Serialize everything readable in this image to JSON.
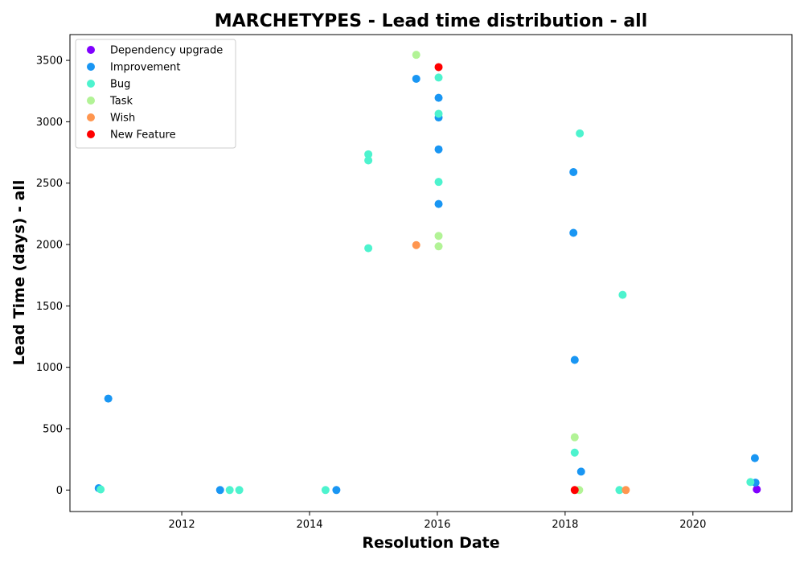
{
  "chart_data": {
    "type": "scatter",
    "title": "MARCHETYPES - Lead time distribution - all",
    "xlabel": "Resolution Date",
    "ylabel": "Lead Time (days) - all",
    "xlim": [
      2010.25,
      2021.55
    ],
    "ylim": [
      -175,
      3710
    ],
    "xticks": [
      2012,
      2014,
      2016,
      2018,
      2020
    ],
    "xtick_labels": [
      "2012",
      "2014",
      "2016",
      "2018",
      "2020"
    ],
    "yticks": [
      0,
      500,
      1000,
      1500,
      2000,
      2500,
      3000,
      3500
    ],
    "ytick_labels": [
      "0",
      "500",
      "1000",
      "1500",
      "2000",
      "2500",
      "3000",
      "3500"
    ],
    "grid": false,
    "legend_position": "top-left",
    "series": [
      {
        "name": "Dependency upgrade",
        "color": "#8000ff",
        "points": [
          [
            2021.0,
            5
          ]
        ]
      },
      {
        "name": "Improvement",
        "color": "#1996f3",
        "points": [
          [
            2010.7,
            15
          ],
          [
            2010.85,
            745
          ],
          [
            2012.6,
            0
          ],
          [
            2014.42,
            0
          ],
          [
            2015.67,
            3350
          ],
          [
            2016.02,
            3195
          ],
          [
            2016.02,
            3035
          ],
          [
            2016.02,
            2775
          ],
          [
            2016.02,
            2330
          ],
          [
            2018.13,
            2590
          ],
          [
            2018.13,
            2095
          ],
          [
            2018.15,
            1060
          ],
          [
            2018.25,
            150
          ],
          [
            2020.97,
            260
          ],
          [
            2020.98,
            60
          ]
        ]
      },
      {
        "name": "Bug",
        "color": "#4df3ce",
        "points": [
          [
            2010.73,
            5
          ],
          [
            2012.75,
            0
          ],
          [
            2012.9,
            0
          ],
          [
            2014.25,
            0
          ],
          [
            2014.92,
            2735
          ],
          [
            2014.92,
            2685
          ],
          [
            2014.92,
            1970
          ],
          [
            2016.02,
            3360
          ],
          [
            2016.02,
            3065
          ],
          [
            2016.02,
            2510
          ],
          [
            2018.23,
            2905
          ],
          [
            2018.15,
            305
          ],
          [
            2018.9,
            1590
          ],
          [
            2018.85,
            0
          ],
          [
            2020.9,
            65
          ]
        ]
      },
      {
        "name": "Task",
        "color": "#b2f396",
        "points": [
          [
            2015.67,
            3545
          ],
          [
            2016.02,
            2070
          ],
          [
            2016.02,
            1985
          ],
          [
            2018.15,
            430
          ],
          [
            2018.22,
            0
          ]
        ]
      },
      {
        "name": "Wish",
        "color": "#ff964f",
        "points": [
          [
            2015.67,
            1995
          ],
          [
            2018.95,
            0
          ]
        ]
      },
      {
        "name": "New Feature",
        "color": "#ff0000",
        "points": [
          [
            2016.02,
            3445
          ],
          [
            2018.15,
            0
          ]
        ]
      }
    ]
  }
}
